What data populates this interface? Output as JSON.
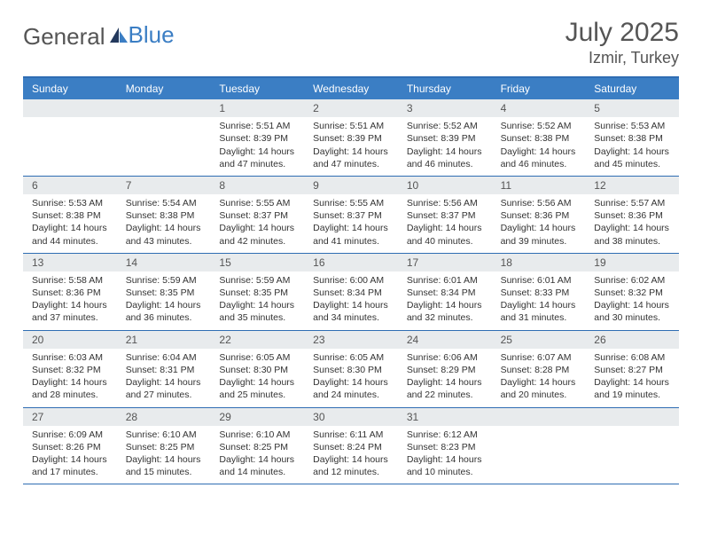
{
  "header": {
    "logo_text1": "General",
    "logo_text2": "Blue",
    "month_title": "July 2025",
    "location": "Izmir, Turkey"
  },
  "colors": {
    "header_bg": "#3b7ec4",
    "header_border": "#2f6db3",
    "daynum_bg": "#e8ebed",
    "text": "#333333",
    "muted": "#555555",
    "white": "#ffffff"
  },
  "day_names": [
    "Sunday",
    "Monday",
    "Tuesday",
    "Wednesday",
    "Thursday",
    "Friday",
    "Saturday"
  ],
  "weeks": [
    [
      {
        "num": "",
        "lines": [
          "",
          "",
          "",
          ""
        ]
      },
      {
        "num": "",
        "lines": [
          "",
          "",
          "",
          ""
        ]
      },
      {
        "num": "1",
        "lines": [
          "Sunrise: 5:51 AM",
          "Sunset: 8:39 PM",
          "Daylight: 14 hours",
          "and 47 minutes."
        ]
      },
      {
        "num": "2",
        "lines": [
          "Sunrise: 5:51 AM",
          "Sunset: 8:39 PM",
          "Daylight: 14 hours",
          "and 47 minutes."
        ]
      },
      {
        "num": "3",
        "lines": [
          "Sunrise: 5:52 AM",
          "Sunset: 8:39 PM",
          "Daylight: 14 hours",
          "and 46 minutes."
        ]
      },
      {
        "num": "4",
        "lines": [
          "Sunrise: 5:52 AM",
          "Sunset: 8:38 PM",
          "Daylight: 14 hours",
          "and 46 minutes."
        ]
      },
      {
        "num": "5",
        "lines": [
          "Sunrise: 5:53 AM",
          "Sunset: 8:38 PM",
          "Daylight: 14 hours",
          "and 45 minutes."
        ]
      }
    ],
    [
      {
        "num": "6",
        "lines": [
          "Sunrise: 5:53 AM",
          "Sunset: 8:38 PM",
          "Daylight: 14 hours",
          "and 44 minutes."
        ]
      },
      {
        "num": "7",
        "lines": [
          "Sunrise: 5:54 AM",
          "Sunset: 8:38 PM",
          "Daylight: 14 hours",
          "and 43 minutes."
        ]
      },
      {
        "num": "8",
        "lines": [
          "Sunrise: 5:55 AM",
          "Sunset: 8:37 PM",
          "Daylight: 14 hours",
          "and 42 minutes."
        ]
      },
      {
        "num": "9",
        "lines": [
          "Sunrise: 5:55 AM",
          "Sunset: 8:37 PM",
          "Daylight: 14 hours",
          "and 41 minutes."
        ]
      },
      {
        "num": "10",
        "lines": [
          "Sunrise: 5:56 AM",
          "Sunset: 8:37 PM",
          "Daylight: 14 hours",
          "and 40 minutes."
        ]
      },
      {
        "num": "11",
        "lines": [
          "Sunrise: 5:56 AM",
          "Sunset: 8:36 PM",
          "Daylight: 14 hours",
          "and 39 minutes."
        ]
      },
      {
        "num": "12",
        "lines": [
          "Sunrise: 5:57 AM",
          "Sunset: 8:36 PM",
          "Daylight: 14 hours",
          "and 38 minutes."
        ]
      }
    ],
    [
      {
        "num": "13",
        "lines": [
          "Sunrise: 5:58 AM",
          "Sunset: 8:36 PM",
          "Daylight: 14 hours",
          "and 37 minutes."
        ]
      },
      {
        "num": "14",
        "lines": [
          "Sunrise: 5:59 AM",
          "Sunset: 8:35 PM",
          "Daylight: 14 hours",
          "and 36 minutes."
        ]
      },
      {
        "num": "15",
        "lines": [
          "Sunrise: 5:59 AM",
          "Sunset: 8:35 PM",
          "Daylight: 14 hours",
          "and 35 minutes."
        ]
      },
      {
        "num": "16",
        "lines": [
          "Sunrise: 6:00 AM",
          "Sunset: 8:34 PM",
          "Daylight: 14 hours",
          "and 34 minutes."
        ]
      },
      {
        "num": "17",
        "lines": [
          "Sunrise: 6:01 AM",
          "Sunset: 8:34 PM",
          "Daylight: 14 hours",
          "and 32 minutes."
        ]
      },
      {
        "num": "18",
        "lines": [
          "Sunrise: 6:01 AM",
          "Sunset: 8:33 PM",
          "Daylight: 14 hours",
          "and 31 minutes."
        ]
      },
      {
        "num": "19",
        "lines": [
          "Sunrise: 6:02 AM",
          "Sunset: 8:32 PM",
          "Daylight: 14 hours",
          "and 30 minutes."
        ]
      }
    ],
    [
      {
        "num": "20",
        "lines": [
          "Sunrise: 6:03 AM",
          "Sunset: 8:32 PM",
          "Daylight: 14 hours",
          "and 28 minutes."
        ]
      },
      {
        "num": "21",
        "lines": [
          "Sunrise: 6:04 AM",
          "Sunset: 8:31 PM",
          "Daylight: 14 hours",
          "and 27 minutes."
        ]
      },
      {
        "num": "22",
        "lines": [
          "Sunrise: 6:05 AM",
          "Sunset: 8:30 PM",
          "Daylight: 14 hours",
          "and 25 minutes."
        ]
      },
      {
        "num": "23",
        "lines": [
          "Sunrise: 6:05 AM",
          "Sunset: 8:30 PM",
          "Daylight: 14 hours",
          "and 24 minutes."
        ]
      },
      {
        "num": "24",
        "lines": [
          "Sunrise: 6:06 AM",
          "Sunset: 8:29 PM",
          "Daylight: 14 hours",
          "and 22 minutes."
        ]
      },
      {
        "num": "25",
        "lines": [
          "Sunrise: 6:07 AM",
          "Sunset: 8:28 PM",
          "Daylight: 14 hours",
          "and 20 minutes."
        ]
      },
      {
        "num": "26",
        "lines": [
          "Sunrise: 6:08 AM",
          "Sunset: 8:27 PM",
          "Daylight: 14 hours",
          "and 19 minutes."
        ]
      }
    ],
    [
      {
        "num": "27",
        "lines": [
          "Sunrise: 6:09 AM",
          "Sunset: 8:26 PM",
          "Daylight: 14 hours",
          "and 17 minutes."
        ]
      },
      {
        "num": "28",
        "lines": [
          "Sunrise: 6:10 AM",
          "Sunset: 8:25 PM",
          "Daylight: 14 hours",
          "and 15 minutes."
        ]
      },
      {
        "num": "29",
        "lines": [
          "Sunrise: 6:10 AM",
          "Sunset: 8:25 PM",
          "Daylight: 14 hours",
          "and 14 minutes."
        ]
      },
      {
        "num": "30",
        "lines": [
          "Sunrise: 6:11 AM",
          "Sunset: 8:24 PM",
          "Daylight: 14 hours",
          "and 12 minutes."
        ]
      },
      {
        "num": "31",
        "lines": [
          "Sunrise: 6:12 AM",
          "Sunset: 8:23 PM",
          "Daylight: 14 hours",
          "and 10 minutes."
        ]
      },
      {
        "num": "",
        "lines": [
          "",
          "",
          "",
          ""
        ]
      },
      {
        "num": "",
        "lines": [
          "",
          "",
          "",
          ""
        ]
      }
    ]
  ]
}
